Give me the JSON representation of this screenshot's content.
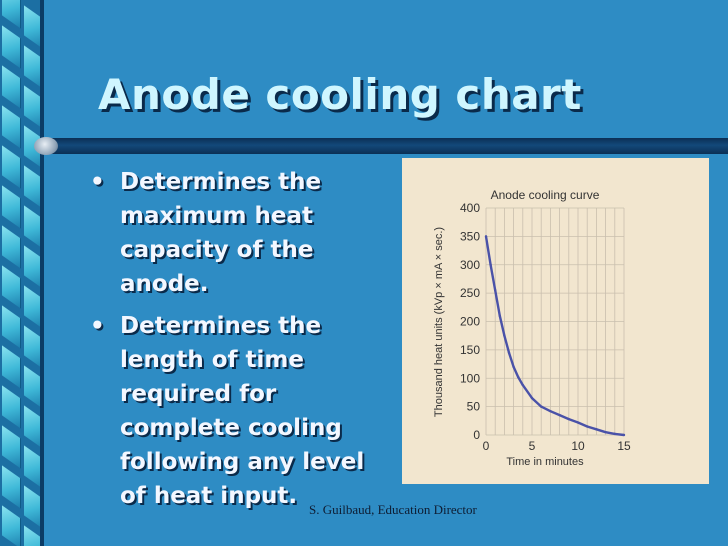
{
  "slide": {
    "title": "Anode cooling chart",
    "bullets": [
      "Determines the maximum heat capacity of the anode.",
      "Determines the length of time required for complete cooling following any level of heat input."
    ],
    "bullet_symbol": "•",
    "footer": "S. Guilbaud, Education Director",
    "colors": {
      "background": "#2E8CC4",
      "title": "#CFF6FF",
      "text": "#F3F7FF",
      "figure_bg": "#F2E6CF",
      "curve": "#4A52A8"
    }
  },
  "chart_data": {
    "type": "line",
    "title": "Anode cooling curve",
    "xlabel": "Time in minutes",
    "ylabel": "Thousand heat units (kVp × mA × sec.)",
    "xlim": [
      0,
      15
    ],
    "ylim": [
      0,
      400
    ],
    "x_ticks": [
      0,
      5,
      10,
      15
    ],
    "y_ticks": [
      0,
      50,
      100,
      150,
      200,
      250,
      300,
      350,
      400
    ],
    "grid": true,
    "series": [
      {
        "x": [
          0,
          0.5,
          1,
          1.5,
          2,
          2.5,
          3,
          3.5,
          4,
          5,
          6,
          7,
          8,
          9,
          10,
          11,
          12,
          13,
          14,
          15
        ],
        "values": [
          350,
          300,
          255,
          210,
          175,
          145,
          120,
          102,
          88,
          65,
          50,
          42,
          35,
          28,
          22,
          15,
          10,
          5,
          2,
          0
        ]
      }
    ]
  }
}
